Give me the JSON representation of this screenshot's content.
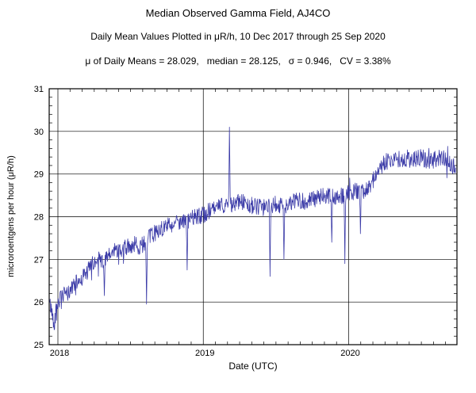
{
  "chart_data": {
    "type": "line",
    "title": "Median Observed Gamma Field, AJ4CO",
    "subtitle": "Daily Mean Values Plotted in μR/h, 10 Dec 2017 through 25 Sep 2020",
    "stats_line": "μ of Daily Means = 28.029,   median = 28.125,   σ = 0.946,   CV = 3.38%",
    "xlabel": "Date (UTC)",
    "ylabel": "microroentgens per hour (μR/h)",
    "xlim": [
      2017.94,
      2020.745
    ],
    "ylim": [
      25,
      31
    ],
    "xticks": [
      2018,
      2019,
      2020
    ],
    "yticks": [
      25,
      26,
      27,
      28,
      29,
      30,
      31
    ],
    "grid": true,
    "legend": "none",
    "line_color": "#3c3ca8",
    "frame_color": "#000000",
    "noise": {
      "amplitude": 0.2,
      "seed": 42,
      "spike_probability": 0.04,
      "spike_amplitude": 0.35
    },
    "trend": [
      [
        2017.945,
        25.95
      ],
      [
        2017.96,
        25.75
      ],
      [
        2017.975,
        25.5
      ],
      [
        2017.99,
        25.9
      ],
      [
        2018.01,
        26.05
      ],
      [
        2018.04,
        26.15
      ],
      [
        2018.07,
        26.2
      ],
      [
        2018.1,
        26.35
      ],
      [
        2018.13,
        26.45
      ],
      [
        2018.16,
        26.55
      ],
      [
        2018.2,
        26.7
      ],
      [
        2018.24,
        26.9
      ],
      [
        2018.28,
        27.0
      ],
      [
        2018.32,
        26.95
      ],
      [
        2018.36,
        27.1
      ],
      [
        2018.4,
        27.25
      ],
      [
        2018.44,
        27.15
      ],
      [
        2018.48,
        27.3
      ],
      [
        2018.52,
        27.35
      ],
      [
        2018.56,
        27.3
      ],
      [
        2018.6,
        27.4
      ],
      [
        2018.64,
        27.55
      ],
      [
        2018.68,
        27.65
      ],
      [
        2018.72,
        27.75
      ],
      [
        2018.76,
        27.8
      ],
      [
        2018.8,
        27.85
      ],
      [
        2018.84,
        27.9
      ],
      [
        2018.88,
        27.85
      ],
      [
        2018.92,
        27.95
      ],
      [
        2018.96,
        28.0
      ],
      [
        2019.0,
        28.05
      ],
      [
        2019.05,
        28.15
      ],
      [
        2019.1,
        28.2
      ],
      [
        2019.15,
        28.3
      ],
      [
        2019.2,
        28.3
      ],
      [
        2019.25,
        28.35
      ],
      [
        2019.3,
        28.3
      ],
      [
        2019.35,
        28.25
      ],
      [
        2019.4,
        28.2
      ],
      [
        2019.45,
        28.25
      ],
      [
        2019.5,
        28.3
      ],
      [
        2019.55,
        28.25
      ],
      [
        2019.6,
        28.3
      ],
      [
        2019.65,
        28.4
      ],
      [
        2019.7,
        28.35
      ],
      [
        2019.75,
        28.4
      ],
      [
        2019.8,
        28.45
      ],
      [
        2019.85,
        28.5
      ],
      [
        2019.9,
        28.45
      ],
      [
        2019.95,
        28.5
      ],
      [
        2020.0,
        28.55
      ],
      [
        2020.05,
        28.6
      ],
      [
        2020.1,
        28.6
      ],
      [
        2020.15,
        28.75
      ],
      [
        2020.2,
        29.05
      ],
      [
        2020.25,
        29.3
      ],
      [
        2020.3,
        29.3
      ],
      [
        2020.35,
        29.35
      ],
      [
        2020.4,
        29.3
      ],
      [
        2020.45,
        29.35
      ],
      [
        2020.5,
        29.4
      ],
      [
        2020.55,
        29.3
      ],
      [
        2020.6,
        29.35
      ],
      [
        2020.65,
        29.4
      ],
      [
        2020.7,
        29.25
      ],
      [
        2020.735,
        29.15
      ]
    ],
    "anomalies": [
      [
        2017.975,
        25.35
      ],
      [
        2018.32,
        26.15
      ],
      [
        2018.61,
        25.95
      ],
      [
        2018.89,
        26.75
      ],
      [
        2019.18,
        30.1
      ],
      [
        2019.46,
        26.6
      ],
      [
        2019.555,
        27.0
      ],
      [
        2019.885,
        27.4
      ],
      [
        2019.975,
        26.9
      ],
      [
        2020.08,
        27.6
      ]
    ]
  }
}
